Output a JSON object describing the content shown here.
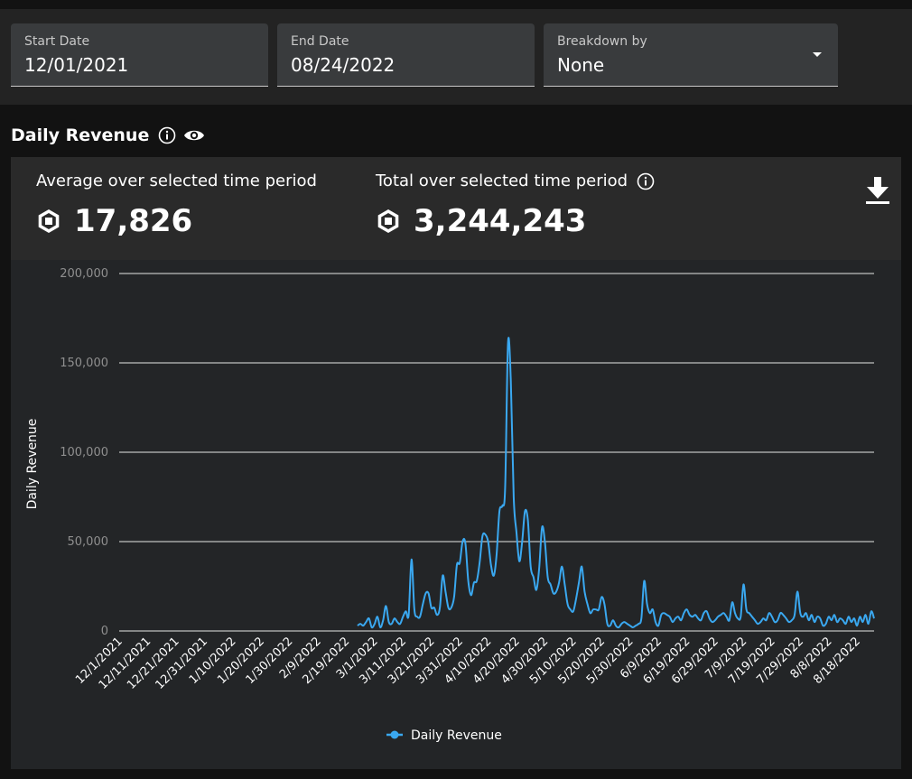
{
  "filters": {
    "start_date": {
      "label": "Start Date",
      "value": "12/01/2021"
    },
    "end_date": {
      "label": "End Date",
      "value": "08/24/2022"
    },
    "breakdown": {
      "label": "Breakdown by",
      "value": "None"
    }
  },
  "section": {
    "title": "Daily Revenue"
  },
  "stats": {
    "average": {
      "label": "Average over selected time period",
      "value": "17,826"
    },
    "total": {
      "label": "Total over selected time period",
      "value": "3,244,243"
    }
  },
  "icons": {
    "info": "info-icon",
    "eye": "eye-icon",
    "robux": "robux-icon",
    "download": "download-icon"
  },
  "colors": {
    "series": "#3aa8f0",
    "grid": "#e6e6e6",
    "text_muted": "#8f8f8f"
  },
  "chart_data": {
    "type": "line",
    "title": "",
    "xlabel": "",
    "ylabel": "Daily Revenue",
    "ylim": [
      0,
      200000
    ],
    "grid": true,
    "legend_placement": "bottom",
    "y_ticks": [
      {
        "value": 0,
        "label": "0"
      },
      {
        "value": 50000,
        "label": "50,000"
      },
      {
        "value": 100000,
        "label": "100,000"
      },
      {
        "value": 150000,
        "label": "150,000"
      },
      {
        "value": 200000,
        "label": "200,000"
      }
    ],
    "x_tick_labels": [
      "12/1/2021",
      "12/11/2021",
      "12/21/2021",
      "12/31/2021",
      "1/10/2022",
      "1/20/2022",
      "1/30/2022",
      "2/9/2022",
      "2/19/2022",
      "3/1/2022",
      "3/11/2022",
      "3/21/2022",
      "3/31/2022",
      "4/10/2022",
      "4/20/2022",
      "4/30/2022",
      "5/10/2022",
      "5/20/2022",
      "5/30/2022",
      "6/9/2022",
      "6/19/2022",
      "6/29/2022",
      "7/9/2022",
      "7/19/2022",
      "7/29/2022",
      "8/8/2022",
      "8/18/2022"
    ],
    "series": [
      {
        "name": "Daily Revenue",
        "color": "#3aa8f0",
        "points": [
          [
            "2/23/2022",
            3000
          ],
          [
            "2/24/2022",
            4000
          ],
          [
            "2/25/2022",
            3000
          ],
          [
            "2/26/2022",
            5000
          ],
          [
            "2/27/2022",
            7000
          ],
          [
            "2/28/2022",
            2000
          ],
          [
            "3/1/2022",
            4000
          ],
          [
            "3/2/2022",
            8000
          ],
          [
            "3/3/2022",
            2000
          ],
          [
            "3/4/2022",
            6000
          ],
          [
            "3/5/2022",
            14000
          ],
          [
            "3/6/2022",
            5000
          ],
          [
            "3/7/2022",
            4000
          ],
          [
            "3/8/2022",
            7000
          ],
          [
            "3/9/2022",
            5000
          ],
          [
            "3/10/2022",
            4000
          ],
          [
            "3/11/2022",
            8000
          ],
          [
            "3/12/2022",
            11000
          ],
          [
            "3/13/2022",
            9000
          ],
          [
            "3/14/2022",
            40000
          ],
          [
            "3/15/2022",
            12000
          ],
          [
            "3/16/2022",
            8000
          ],
          [
            "3/17/2022",
            8000
          ],
          [
            "3/18/2022",
            15000
          ],
          [
            "3/19/2022",
            21000
          ],
          [
            "3/20/2022",
            21000
          ],
          [
            "3/21/2022",
            13000
          ],
          [
            "3/22/2022",
            13000
          ],
          [
            "3/23/2022",
            9000
          ],
          [
            "3/24/2022",
            13000
          ],
          [
            "3/25/2022",
            31000
          ],
          [
            "3/26/2022",
            22000
          ],
          [
            "3/27/2022",
            13000
          ],
          [
            "3/28/2022",
            13000
          ],
          [
            "3/29/2022",
            19000
          ],
          [
            "3/30/2022",
            37000
          ],
          [
            "3/31/2022",
            38000
          ],
          [
            "4/1/2022",
            50000
          ],
          [
            "4/2/2022",
            49000
          ],
          [
            "4/3/2022",
            28000
          ],
          [
            "4/4/2022",
            20000
          ],
          [
            "4/5/2022",
            27000
          ],
          [
            "4/6/2022",
            28000
          ],
          [
            "4/7/2022",
            38000
          ],
          [
            "4/8/2022",
            53000
          ],
          [
            "4/9/2022",
            54000
          ],
          [
            "4/10/2022",
            50000
          ],
          [
            "4/11/2022",
            37000
          ],
          [
            "4/12/2022",
            31000
          ],
          [
            "4/13/2022",
            43000
          ],
          [
            "4/14/2022",
            67000
          ],
          [
            "4/15/2022",
            70000
          ],
          [
            "4/16/2022",
            80000
          ],
          [
            "4/17/2022",
            161000
          ],
          [
            "4/18/2022",
            140000
          ],
          [
            "4/19/2022",
            75000
          ],
          [
            "4/20/2022",
            55000
          ],
          [
            "4/21/2022",
            39000
          ],
          [
            "4/22/2022",
            50000
          ],
          [
            "4/23/2022",
            67000
          ],
          [
            "4/24/2022",
            62000
          ],
          [
            "4/25/2022",
            36000
          ],
          [
            "4/26/2022",
            30000
          ],
          [
            "4/27/2022",
            23000
          ],
          [
            "4/28/2022",
            35000
          ],
          [
            "4/29/2022",
            58000
          ],
          [
            "4/30/2022",
            50000
          ],
          [
            "5/1/2022",
            30000
          ],
          [
            "5/2/2022",
            26000
          ],
          [
            "5/3/2022",
            21000
          ],
          [
            "5/4/2022",
            22000
          ],
          [
            "5/5/2022",
            27000
          ],
          [
            "5/6/2022",
            36000
          ],
          [
            "5/7/2022",
            26000
          ],
          [
            "5/8/2022",
            15000
          ],
          [
            "5/9/2022",
            12000
          ],
          [
            "5/10/2022",
            11000
          ],
          [
            "5/11/2022",
            18000
          ],
          [
            "5/12/2022",
            27000
          ],
          [
            "5/13/2022",
            36000
          ],
          [
            "5/14/2022",
            22000
          ],
          [
            "5/15/2022",
            15000
          ],
          [
            "5/16/2022",
            10000
          ],
          [
            "5/17/2022",
            12000
          ],
          [
            "5/18/2022",
            12000
          ],
          [
            "5/19/2022",
            12000
          ],
          [
            "5/20/2022",
            19000
          ],
          [
            "5/21/2022",
            15000
          ],
          [
            "5/22/2022",
            4000
          ],
          [
            "5/23/2022",
            3000
          ],
          [
            "5/24/2022",
            6000
          ],
          [
            "5/25/2022",
            3000
          ],
          [
            "5/26/2022",
            2000
          ],
          [
            "5/27/2022",
            4000
          ],
          [
            "5/28/2022",
            5000
          ],
          [
            "5/29/2022",
            4000
          ],
          [
            "5/30/2022",
            3000
          ],
          [
            "5/31/2022",
            2000
          ],
          [
            "6/1/2022",
            3000
          ],
          [
            "6/2/2022",
            4000
          ],
          [
            "6/3/2022",
            7000
          ],
          [
            "6/4/2022",
            28000
          ],
          [
            "6/5/2022",
            15000
          ],
          [
            "6/6/2022",
            10000
          ],
          [
            "6/7/2022",
            12000
          ],
          [
            "6/8/2022",
            5000
          ],
          [
            "6/9/2022",
            3000
          ],
          [
            "6/10/2022",
            9000
          ],
          [
            "6/11/2022",
            10000
          ],
          [
            "6/12/2022",
            9000
          ],
          [
            "6/13/2022",
            8000
          ],
          [
            "6/14/2022",
            5000
          ],
          [
            "6/15/2022",
            7000
          ],
          [
            "6/16/2022",
            8000
          ],
          [
            "6/17/2022",
            6000
          ],
          [
            "6/18/2022",
            10000
          ],
          [
            "6/19/2022",
            12000
          ],
          [
            "6/20/2022",
            9000
          ],
          [
            "6/21/2022",
            8000
          ],
          [
            "6/22/2022",
            9000
          ],
          [
            "6/23/2022",
            7000
          ],
          [
            "6/24/2022",
            6000
          ],
          [
            "6/25/2022",
            10000
          ],
          [
            "6/26/2022",
            11000
          ],
          [
            "6/27/2022",
            7000
          ],
          [
            "6/28/2022",
            5000
          ],
          [
            "6/29/2022",
            6000
          ],
          [
            "6/30/2022",
            8000
          ],
          [
            "7/1/2022",
            9000
          ],
          [
            "7/2/2022",
            10000
          ],
          [
            "7/3/2022",
            8000
          ],
          [
            "7/4/2022",
            6000
          ],
          [
            "7/5/2022",
            16000
          ],
          [
            "7/6/2022",
            10000
          ],
          [
            "7/7/2022",
            7000
          ],
          [
            "7/8/2022",
            8000
          ],
          [
            "7/9/2022",
            26000
          ],
          [
            "7/10/2022",
            12000
          ],
          [
            "7/11/2022",
            10000
          ],
          [
            "7/12/2022",
            8000
          ],
          [
            "7/13/2022",
            6000
          ],
          [
            "7/14/2022",
            4000
          ],
          [
            "7/15/2022",
            5000
          ],
          [
            "7/16/2022",
            7000
          ],
          [
            "7/17/2022",
            6000
          ],
          [
            "7/18/2022",
            10000
          ],
          [
            "7/19/2022",
            8000
          ],
          [
            "7/20/2022",
            5000
          ],
          [
            "7/21/2022",
            6000
          ],
          [
            "7/22/2022",
            10000
          ],
          [
            "7/23/2022",
            9000
          ],
          [
            "7/24/2022",
            7000
          ],
          [
            "7/25/2022",
            5000
          ],
          [
            "7/26/2022",
            6000
          ],
          [
            "7/27/2022",
            9000
          ],
          [
            "7/28/2022",
            22000
          ],
          [
            "7/29/2022",
            10000
          ],
          [
            "7/30/2022",
            8000
          ],
          [
            "7/31/2022",
            10000
          ],
          [
            "8/1/2022",
            6000
          ],
          [
            "8/2/2022",
            9000
          ],
          [
            "8/3/2022",
            5000
          ],
          [
            "8/4/2022",
            8000
          ],
          [
            "8/5/2022",
            7000
          ],
          [
            "8/6/2022",
            3000
          ],
          [
            "8/7/2022",
            4000
          ],
          [
            "8/8/2022",
            8000
          ],
          [
            "8/9/2022",
            6000
          ],
          [
            "8/10/2022",
            9000
          ],
          [
            "8/11/2022",
            5000
          ],
          [
            "8/12/2022",
            7000
          ],
          [
            "8/13/2022",
            6000
          ],
          [
            "8/14/2022",
            4000
          ],
          [
            "8/15/2022",
            8000
          ],
          [
            "8/16/2022",
            5000
          ],
          [
            "8/17/2022",
            7000
          ],
          [
            "8/18/2022",
            3000
          ],
          [
            "8/19/2022",
            8000
          ],
          [
            "8/20/2022",
            5000
          ],
          [
            "8/21/2022",
            9000
          ],
          [
            "8/22/2022",
            4000
          ],
          [
            "8/23/2022",
            11000
          ],
          [
            "8/24/2022",
            7000
          ]
        ]
      }
    ]
  }
}
